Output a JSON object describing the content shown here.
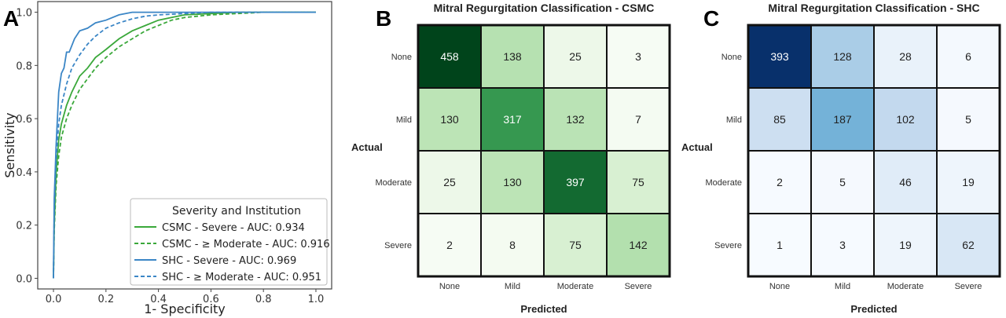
{
  "panels": {
    "a": "A",
    "b": "B",
    "c": "C"
  },
  "chart_data": [
    {
      "type": "line",
      "xlabel": "1- Specificity",
      "ylabel": "Sensitivity",
      "xlim": [
        0,
        1.0
      ],
      "ylim": [
        0,
        1.0
      ],
      "xticks": [
        "0.0",
        "0.2",
        "0.4",
        "0.6",
        "0.8",
        "1.0"
      ],
      "yticks": [
        "0.0",
        "0.2",
        "0.4",
        "0.6",
        "0.8",
        "1.0"
      ],
      "legend_title": "Severity and Institution",
      "legend_position": "lower-right",
      "series": [
        {
          "name": "CSMC - Severe - AUC: 0.934",
          "color": "#3aa83a",
          "dash": "solid",
          "x": [
            0,
            0.003,
            0.01,
            0.02,
            0.03,
            0.05,
            0.07,
            0.1,
            0.13,
            0.16,
            0.2,
            0.25,
            0.3,
            0.35,
            0.4,
            0.45,
            0.5,
            0.6,
            0.7,
            0.8,
            1.0
          ],
          "y": [
            0,
            0.2,
            0.4,
            0.52,
            0.58,
            0.65,
            0.7,
            0.76,
            0.79,
            0.83,
            0.86,
            0.9,
            0.93,
            0.95,
            0.97,
            0.98,
            0.99,
            0.995,
            1.0,
            1.0,
            1.0
          ]
        },
        {
          "name": "CSMC - ≥ Moderate - AUC: 0.916",
          "color": "#3aa83a",
          "dash": "dashed",
          "x": [
            0,
            0.003,
            0.01,
            0.02,
            0.03,
            0.05,
            0.07,
            0.1,
            0.13,
            0.16,
            0.2,
            0.25,
            0.3,
            0.35,
            0.4,
            0.45,
            0.5,
            0.6,
            0.7,
            0.8,
            1.0
          ],
          "y": [
            0,
            0.18,
            0.35,
            0.46,
            0.53,
            0.6,
            0.65,
            0.71,
            0.75,
            0.79,
            0.83,
            0.87,
            0.9,
            0.93,
            0.95,
            0.97,
            0.98,
            0.99,
            0.995,
            1.0,
            1.0
          ]
        },
        {
          "name": "SHC - Severe - AUC: 0.969",
          "color": "#3b86c6",
          "dash": "solid",
          "x": [
            0,
            0.003,
            0.01,
            0.02,
            0.03,
            0.04,
            0.05,
            0.06,
            0.08,
            0.1,
            0.13,
            0.16,
            0.2,
            0.25,
            0.3,
            0.35,
            0.4,
            0.5,
            0.7,
            1.0
          ],
          "y": [
            0,
            0.3,
            0.5,
            0.7,
            0.77,
            0.79,
            0.85,
            0.85,
            0.9,
            0.93,
            0.94,
            0.96,
            0.97,
            0.99,
            1.0,
            1.0,
            1.0,
            1.0,
            1.0,
            1.0
          ]
        },
        {
          "name": "SHC - ≥ Moderate - AUC: 0.951",
          "color": "#3b86c6",
          "dash": "dashed",
          "x": [
            0,
            0.003,
            0.01,
            0.02,
            0.03,
            0.05,
            0.07,
            0.1,
            0.13,
            0.16,
            0.2,
            0.25,
            0.3,
            0.35,
            0.4,
            0.5,
            0.6,
            0.8,
            1.0
          ],
          "y": [
            0,
            0.25,
            0.45,
            0.58,
            0.65,
            0.73,
            0.79,
            0.84,
            0.88,
            0.91,
            0.94,
            0.96,
            0.975,
            0.985,
            0.99,
            0.995,
            1.0,
            1.0,
            1.0
          ]
        }
      ]
    },
    {
      "type": "heatmap",
      "title": "Mitral Regurgitation Classification - CSMC",
      "xlabel": "Predicted",
      "ylabel": "Actual",
      "colormap": "greens",
      "rows": [
        "None",
        "Mild",
        "Moderate",
        "Severe"
      ],
      "cols": [
        "None",
        "Mild",
        "Moderate",
        "Severe"
      ],
      "values": [
        [
          458,
          138,
          25,
          3
        ],
        [
          130,
          317,
          132,
          7
        ],
        [
          25,
          130,
          397,
          75
        ],
        [
          2,
          8,
          75,
          142
        ]
      ]
    },
    {
      "type": "heatmap",
      "title": "Mitral Regurgitation Classification - SHC",
      "xlabel": "Predicted",
      "ylabel": "Actual",
      "colormap": "blues",
      "rows": [
        "None",
        "Mild",
        "Moderate",
        "Severe"
      ],
      "cols": [
        "None",
        "Mild",
        "Moderate",
        "Severe"
      ],
      "values": [
        [
          393,
          128,
          28,
          6
        ],
        [
          85,
          187,
          102,
          5
        ],
        [
          2,
          5,
          46,
          19
        ],
        [
          1,
          3,
          19,
          62
        ]
      ]
    }
  ]
}
